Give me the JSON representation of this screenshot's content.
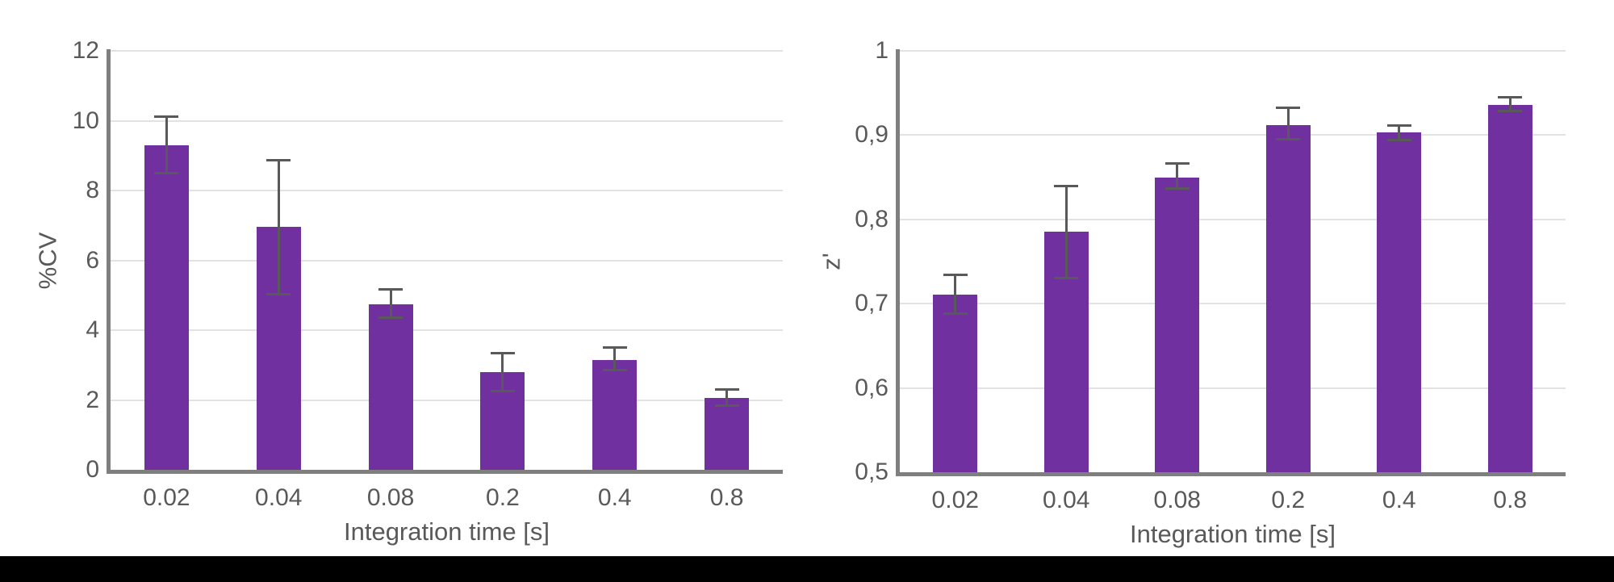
{
  "colors": {
    "bar": "#7030A0",
    "error_bar": "#595959",
    "axis": "#7F7F7F",
    "gridline": "#E2E2E2",
    "text": "#595959",
    "footer": "#000000"
  },
  "footer": {
    "note": ""
  },
  "chart_data": [
    {
      "type": "bar",
      "title": "",
      "xlabel": "Integration time [s]",
      "ylabel": "%CV",
      "categories": [
        "0.02",
        "0.04",
        "0.08",
        "0.2",
        "0.4",
        "0.8"
      ],
      "values": [
        9.3,
        6.95,
        4.75,
        2.8,
        3.15,
        2.06
      ],
      "error_bar_low": [
        8.5,
        5.05,
        4.38,
        2.27,
        2.86,
        1.86
      ],
      "error_bar_high": [
        10.1,
        8.85,
        5.15,
        3.32,
        3.48,
        2.3
      ],
      "ylim": [
        0,
        12
      ],
      "yticks": [
        {
          "v": 0,
          "label": "0"
        },
        {
          "v": 2,
          "label": "2"
        },
        {
          "v": 4,
          "label": "4"
        },
        {
          "v": 6,
          "label": "6"
        },
        {
          "v": 8,
          "label": "8"
        },
        {
          "v": 10,
          "label": "10"
        },
        {
          "v": 12,
          "label": "12"
        }
      ],
      "grid": true,
      "legend": false
    },
    {
      "type": "bar",
      "title": "",
      "xlabel": "Integration time [s]",
      "ylabel": "z'",
      "categories": [
        "0.02",
        "0.04",
        "0.08",
        "0.2",
        "0.4",
        "0.8"
      ],
      "values": [
        0.711,
        0.785,
        0.85,
        0.912,
        0.903,
        0.936
      ],
      "error_bar_low": [
        0.689,
        0.731,
        0.837,
        0.896,
        0.895,
        0.929
      ],
      "error_bar_high": [
        0.734,
        0.839,
        0.866,
        0.932,
        0.911,
        0.944
      ],
      "ylim": [
        0.5,
        1
      ],
      "yticks": [
        {
          "v": 0.5,
          "label": "0,5"
        },
        {
          "v": 0.6,
          "label": "0,6"
        },
        {
          "v": 0.7,
          "label": "0,7"
        },
        {
          "v": 0.8,
          "label": "0,8"
        },
        {
          "v": 0.9,
          "label": "0,9"
        },
        {
          "v": 1,
          "label": "1"
        }
      ],
      "grid": true,
      "legend": false
    }
  ]
}
